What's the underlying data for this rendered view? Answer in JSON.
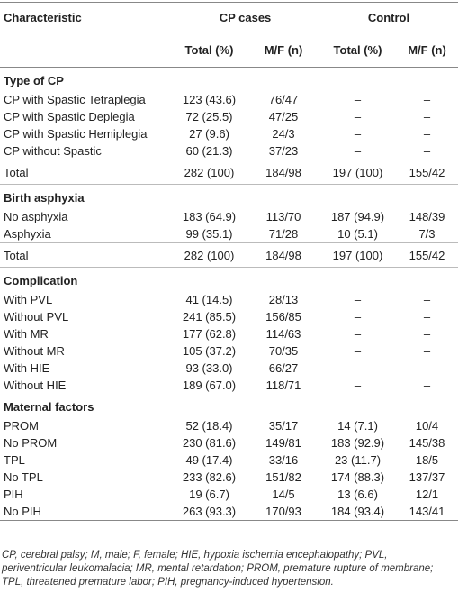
{
  "header": {
    "characteristic": "Characteristic",
    "groups": [
      "CP cases",
      "Control"
    ],
    "columns": [
      "Total (%)",
      "M/F (n)",
      "Total (%)",
      "M/F (n)"
    ]
  },
  "sections": [
    {
      "title": "Type of CP",
      "rows": [
        [
          "CP with Spastic Tetraplegia",
          "123 (43.6)",
          "76/47",
          "–",
          "–"
        ],
        [
          "CP with Spastic Deplegia",
          "72 (25.5)",
          "47/25",
          "–",
          "–"
        ],
        [
          "CP with Spastic Hemiplegia",
          "27 (9.6)",
          "24/3",
          "–",
          "–"
        ],
        [
          "CP without Spastic",
          "60 (21.3)",
          "37/23",
          "–",
          "–"
        ]
      ],
      "total": [
        "Total",
        "282 (100)",
        "184/98",
        "197 (100)",
        "155/42"
      ]
    },
    {
      "title": "Birth asphyxia",
      "rows": [
        [
          "No asphyxia",
          "183 (64.9)",
          "113/70",
          "187 (94.9)",
          "148/39"
        ],
        [
          "Asphyxia",
          "99 (35.1)",
          "71/28",
          "10 (5.1)",
          "7/3"
        ]
      ],
      "total": [
        "Total",
        "282 (100)",
        "184/98",
        "197 (100)",
        "155/42"
      ]
    },
    {
      "title": "Complication",
      "rows": [
        [
          "With PVL",
          "41 (14.5)",
          "28/13",
          "–",
          "–"
        ],
        [
          "Without PVL",
          "241 (85.5)",
          "156/85",
          "–",
          "–"
        ],
        [
          "With MR",
          "177 (62.8)",
          "114/63",
          "–",
          "–"
        ],
        [
          "Without MR",
          "105 (37.2)",
          "70/35",
          "–",
          "–"
        ],
        [
          "With HIE",
          "93 (33.0)",
          "66/27",
          "–",
          "–"
        ],
        [
          "Without HIE",
          "189 (67.0)",
          "118/71",
          "–",
          "–"
        ]
      ]
    },
    {
      "title": "Maternal factors",
      "rows": [
        [
          "PROM",
          "52 (18.4)",
          "35/17",
          "14 (7.1)",
          "10/4"
        ],
        [
          "No PROM",
          "230 (81.6)",
          "149/81",
          "183 (92.9)",
          "145/38"
        ],
        [
          "TPL",
          "49 (17.4)",
          "33/16",
          "23 (11.7)",
          "18/5"
        ],
        [
          "No TPL",
          "233 (82.6)",
          "151/82",
          "174 (88.3)",
          "137/37"
        ],
        [
          "PIH",
          "19 (6.7)",
          "14/5",
          "13 (6.6)",
          "12/1"
        ],
        [
          "No PIH",
          "263 (93.3)",
          "170/93",
          "184 (93.4)",
          "143/41"
        ]
      ]
    }
  ],
  "footnote": "CP, cerebral palsy; M, male; F, female; HIE, hypoxia ischemia encephalopathy; PVL, periventricular leukomalacia; MR, mental retardation; PROM, premature rupture of membrane; TPL, threatened premature labor; PIH, pregnancy-induced hypertension."
}
